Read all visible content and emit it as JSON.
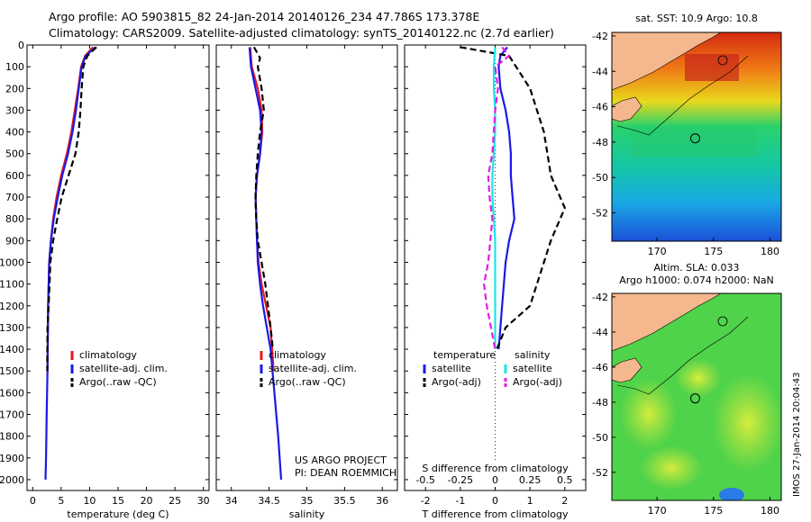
{
  "header": {
    "line1": "Argo profile: AO 5903815_82 24-Jan-2014 20140126_234 47.786S 173.378E",
    "line2": "Climatology: CARS2009. Satellite-adjusted climatology: synTS_20140122.nc (2.7d earlier)"
  },
  "colors": {
    "climatology": "#e8161b",
    "satellite": "#1a1ae6",
    "argo": "#000000",
    "salinity_satellite": "#19e6e6",
    "salinity_argo": "#e619e6",
    "land": "#f5b88e"
  },
  "footer": {
    "project": "US ARGO PROJECT",
    "pi": "PI: DEAN ROEMMICH",
    "stamp": "IMOS 27-Jan-2014 20:04:43"
  },
  "chart_data": [
    {
      "type": "line",
      "id": "temperature",
      "xlabel": "temperature (deg C)",
      "ylabel": "",
      "xlim": [
        -1,
        31
      ],
      "ylim": [
        2050,
        0
      ],
      "xticks": [
        0,
        5,
        10,
        15,
        20,
        25,
        30
      ],
      "yticks": [
        0,
        100,
        200,
        300,
        400,
        500,
        600,
        700,
        800,
        900,
        1000,
        1100,
        1200,
        1300,
        1400,
        1500,
        1600,
        1700,
        1800,
        1900,
        2000
      ],
      "legend": {
        "placement": "lower-center",
        "entries": [
          "climatology",
          "satellite-adj. clim.",
          "Argo(..raw -QC)"
        ]
      },
      "series": [
        {
          "name": "climatology",
          "style": "solid",
          "color": "#e8161b",
          "x": [
            10.6,
            9.2,
            8.5,
            8.0,
            7.4,
            6.8,
            6.0,
            5.0,
            4.2,
            3.6,
            3.2,
            2.9,
            2.7,
            2.6
          ],
          "y": [
            10,
            50,
            100,
            200,
            300,
            400,
            500,
            600,
            700,
            800,
            900,
            1000,
            1200,
            1500
          ]
        },
        {
          "name": "satellite-adj. clim.",
          "style": "solid",
          "color": "#1a1ae6",
          "x": [
            11.0,
            9.3,
            8.6,
            8.1,
            7.6,
            7.0,
            6.2,
            5.2,
            4.4,
            3.7,
            3.2,
            2.9,
            2.7,
            2.6,
            2.45,
            2.35,
            2.25
          ],
          "y": [
            10,
            50,
            100,
            200,
            300,
            400,
            500,
            600,
            700,
            800,
            900,
            1000,
            1200,
            1500,
            1700,
            1900,
            2000
          ]
        },
        {
          "name": "Argo(..raw -QC)",
          "style": "dashed",
          "color": "#000000",
          "x": [
            11.2,
            9.6,
            8.9,
            8.6,
            8.4,
            8.1,
            7.5,
            6.3,
            5.1,
            4.3,
            3.6,
            3.1,
            2.8,
            2.6,
            2.55
          ],
          "y": [
            10,
            50,
            100,
            200,
            300,
            400,
            500,
            600,
            700,
            800,
            900,
            1000,
            1200,
            1300,
            1500
          ]
        }
      ]
    },
    {
      "type": "line",
      "id": "salinity",
      "xlabel": "salinity",
      "ylabel": "",
      "xlim": [
        33.8,
        36.2
      ],
      "ylim": [
        2050,
        0
      ],
      "xticks": [
        34,
        34.5,
        35,
        35.5,
        36
      ],
      "legend": {
        "placement": "lower-center",
        "entries": [
          "climatology",
          "satellite-adj. clim.",
          "Argo(..raw -QC)"
        ]
      },
      "series": [
        {
          "name": "climatology",
          "style": "solid",
          "color": "#e8161b",
          "x": [
            34.25,
            34.27,
            34.35,
            34.4,
            34.41,
            34.38,
            34.34,
            34.32,
            34.33,
            34.34,
            34.36,
            34.4,
            34.46,
            34.52,
            34.56
          ],
          "y": [
            10,
            100,
            200,
            300,
            400,
            500,
            600,
            700,
            800,
            900,
            1000,
            1100,
            1200,
            1300,
            1500
          ]
        },
        {
          "name": "satellite-adj. clim.",
          "style": "solid",
          "color": "#1a1ae6",
          "x": [
            34.24,
            34.26,
            34.32,
            34.38,
            34.4,
            34.38,
            34.34,
            34.32,
            34.33,
            34.34,
            34.35,
            34.38,
            34.42,
            34.47,
            34.52,
            34.57,
            34.62,
            34.66
          ],
          "y": [
            10,
            100,
            200,
            300,
            400,
            500,
            600,
            700,
            800,
            900,
            1000,
            1100,
            1200,
            1300,
            1400,
            1600,
            1800,
            2000
          ]
        },
        {
          "name": "Argo(..raw -QC)",
          "style": "dashed",
          "color": "#000000",
          "x": [
            34.3,
            34.38,
            34.35,
            34.4,
            34.43,
            34.38,
            34.35,
            34.33,
            34.32,
            34.33,
            34.35,
            34.4,
            34.45,
            34.52,
            34.55
          ],
          "y": [
            10,
            60,
            100,
            200,
            300,
            400,
            500,
            600,
            700,
            800,
            900,
            1000,
            1100,
            1300,
            1400
          ]
        }
      ]
    },
    {
      "type": "line",
      "id": "differences",
      "xlabel": "T difference from climatology",
      "x2label": "S difference from climatology",
      "xlim": [
        -2.6,
        2.6
      ],
      "x2lim": [
        -0.65,
        0.65
      ],
      "ylim": [
        2050,
        0
      ],
      "xticks": [
        -2,
        -1,
        0,
        1,
        2
      ],
      "x2ticks": [
        -0.5,
        -0.25,
        0,
        0.25,
        0.5
      ],
      "x2ticklabels": [
        "-0.5",
        "-0.25",
        "0",
        "0.25",
        "0.5"
      ],
      "legend": {
        "placement": "lower-center",
        "headers": [
          "temperature",
          "salinity"
        ],
        "entries": [
          "satellite",
          "Argo(-adj)",
          "satellite",
          "Argo(-adj)"
        ]
      },
      "series": [
        {
          "name": "temperature satellite",
          "style": "solid",
          "color": "#1a1ae6",
          "x": [
            0.35,
            0.15,
            0.1,
            0.15,
            0.3,
            0.4,
            0.45,
            0.45,
            0.5,
            0.55,
            0.4,
            0.3,
            0.2,
            0.1
          ],
          "y": [
            10,
            50,
            100,
            200,
            300,
            400,
            500,
            600,
            700,
            800,
            900,
            1000,
            1200,
            1400
          ]
        },
        {
          "name": "temperature Argo(-adj)",
          "style": "dashed",
          "color": "#000000",
          "x": [
            -1.0,
            0.4,
            0.6,
            1.0,
            1.2,
            1.4,
            1.5,
            1.6,
            2.0,
            1.6,
            1.4,
            1.2,
            1.0,
            0.3,
            0.05
          ],
          "y": [
            10,
            50,
            100,
            200,
            300,
            400,
            500,
            600,
            750,
            900,
            1000,
            1100,
            1200,
            1300,
            1400
          ]
        },
        {
          "name": "salinity satellite",
          "style": "solid",
          "color": "#19e6e6",
          "x": [
            0.0,
            -0.01,
            -0.01,
            0.0,
            0.0,
            -0.01,
            -0.02,
            -0.02,
            -0.01,
            0.0,
            0.0,
            0.0,
            0.0
          ],
          "y": [
            10,
            100,
            200,
            300,
            400,
            500,
            600,
            700,
            800,
            900,
            1000,
            1200,
            1400
          ]
        },
        {
          "name": "salinity Argo(-adj)",
          "style": "dashed",
          "color": "#e619e6",
          "x": [
            0.05,
            0.1,
            0.0,
            0.02,
            0.0,
            -0.01,
            -0.02,
            -0.05,
            -0.04,
            -0.02,
            -0.05,
            -0.08,
            -0.06,
            -0.03,
            0.0
          ],
          "y": [
            10,
            50,
            100,
            200,
            300,
            400,
            500,
            600,
            700,
            800,
            1000,
            1100,
            1200,
            1300,
            1400
          ]
        }
      ]
    },
    {
      "type": "heatmap",
      "id": "sst-map",
      "title": "sat. SST: 10.9  Argo: 10.8",
      "xlim": [
        166,
        181
      ],
      "ylim": [
        -53.6,
        -41.8
      ],
      "xticks": [
        170,
        175,
        180
      ],
      "yticks": [
        -42,
        -44,
        -46,
        -48,
        -50,
        -52
      ],
      "float_position": {
        "lon": 173.378,
        "lat": -47.786
      }
    },
    {
      "type": "heatmap",
      "id": "sla-map",
      "title": "Altim. SLA: 0.033",
      "subtitle": "Argo h1000: 0.074 h2000: NaN",
      "xlim": [
        166,
        181
      ],
      "ylim": [
        -53.6,
        -41.8
      ],
      "xticks": [
        170,
        175,
        180
      ],
      "yticks": [
        -42,
        -44,
        -46,
        -48,
        -50,
        -52
      ],
      "float_position": {
        "lon": 173.378,
        "lat": -47.786
      }
    }
  ]
}
